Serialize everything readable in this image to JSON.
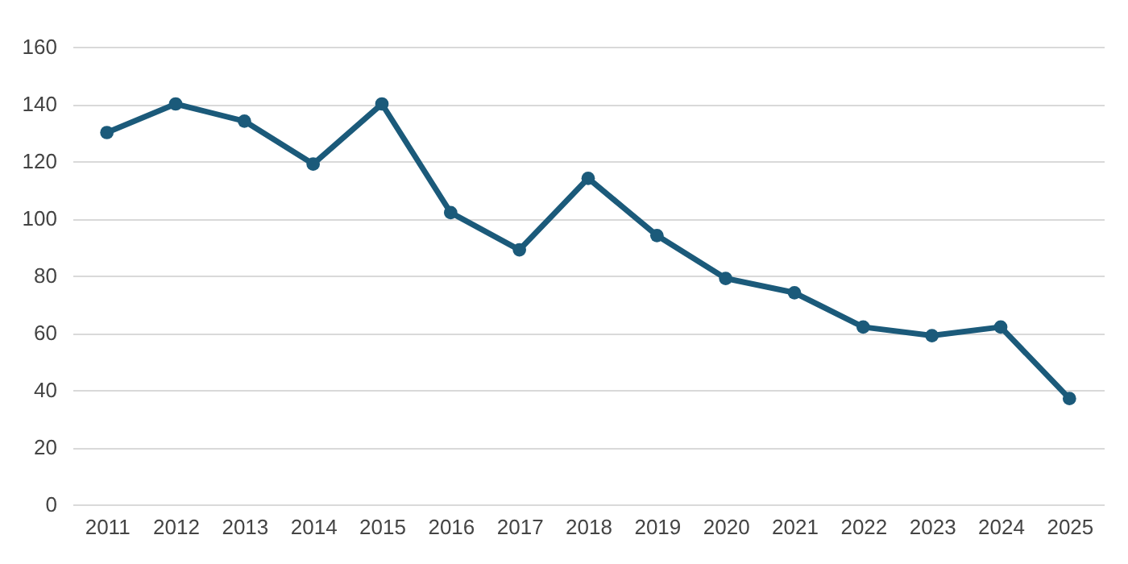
{
  "chart_data": {
    "type": "line",
    "categories": [
      "2011",
      "2012",
      "2013",
      "2014",
      "2015",
      "2016",
      "2017",
      "2018",
      "2019",
      "2020",
      "2021",
      "2022",
      "2023",
      "2024",
      "2025"
    ],
    "series": [
      {
        "color": "#1b5a7a",
        "values": [
          130,
          140,
          134,
          119,
          140,
          102,
          89,
          114,
          94,
          79,
          74,
          62,
          59,
          62,
          37
        ]
      }
    ],
    "ylim": [
      0,
      160
    ],
    "yticks": [
      0,
      20,
      40,
      60,
      80,
      100,
      120,
      140,
      160
    ],
    "grid": "y",
    "marker": "circle",
    "line_style": "solid"
  }
}
